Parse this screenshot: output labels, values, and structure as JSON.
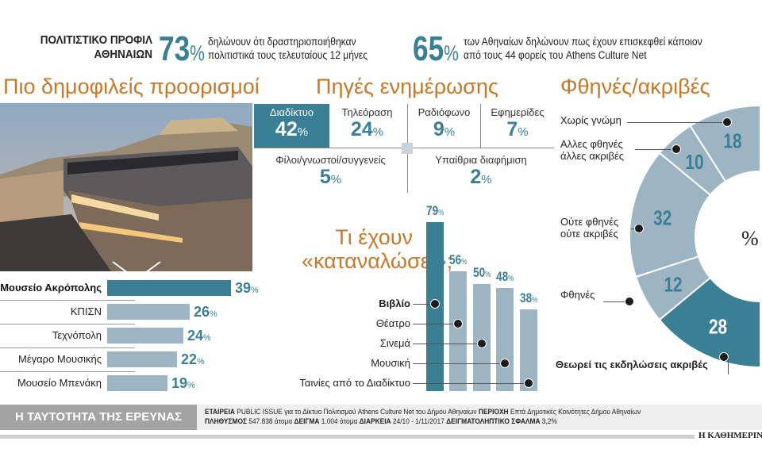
{
  "header": {
    "title_line1": "ΠΟΛΙΤΙΣΤΙΚΟ ΠΡΟΦΙΛ",
    "title_line2": "ΑΘΗΝΑΙΩΝ",
    "stat1": {
      "value": "73",
      "unit": "%",
      "text_line1": "δηλώνουν ότι δραστηριοποιήθηκαν",
      "text_line2": "πολιτιστικά τους τελευταίους 12 μήνες"
    },
    "stat2": {
      "value": "65",
      "unit": "%",
      "text_line1": "των Αθηναίων δηλώνουν πως έχουν επισκεφθεί κάποιον",
      "text_line2": "από τους 44 φορείς του Athens Culture Net"
    }
  },
  "colors": {
    "accent": "#3a7f94",
    "bar": "#9db5c3",
    "title": "#c8782a"
  },
  "chart_data": [
    {
      "type": "bar",
      "orientation": "horizontal",
      "title": "Πιο δημοφιλείς προορισμοί",
      "categories": [
        "Μουσείο Ακρόπολης",
        "ΚΠΙΣΝ",
        "Τεχνόπολη",
        "Μέγαρο Μουσικής",
        "Μουσείο Μπενάκη"
      ],
      "values": [
        39,
        26,
        24,
        22,
        19
      ],
      "unit": "%",
      "highlight": 0,
      "image": "Acropolis Museum photo"
    },
    {
      "type": "table",
      "title": "Πηγές ενημέρωσης",
      "categories": [
        "Διαδίκτυο",
        "Τηλεόραση",
        "Ραδιόφωνο",
        "Εφημερίδες",
        "Φίλοι/γνωστοί/συγγενείς",
        "Υπαίθρια διαφήμιση"
      ],
      "values": [
        42,
        24,
        9,
        7,
        5,
        2
      ],
      "unit": "%",
      "highlight": 0
    },
    {
      "type": "bar",
      "title_line1": "Τι έχουν",
      "title_line2": "«καταναλώσει»;",
      "categories": [
        "Βιβλίο",
        "Θέατρο",
        "Σινεμά",
        "Μουσική",
        "Ταινίες από το Διαδίκτυο"
      ],
      "values": [
        79,
        56,
        50,
        48,
        38
      ],
      "unit": "%",
      "highlight": 0
    },
    {
      "type": "pie",
      "style": "half-donut",
      "title": "Φθηνές/ακριβές",
      "center_label": "%",
      "categories": [
        "Χωρίς γνώμη",
        "Αλλες φθηνές άλλες ακριβές",
        "Ούτε φθηνές ούτε ακριβές",
        "Φθηνές",
        "Θεωρεί τις εκδηλώσεις ακριβές"
      ],
      "label_lines": [
        [
          "Χωρίς γνώμη"
        ],
        [
          "Αλλες φθηνές",
          "άλλες ακριβές"
        ],
        [
          "Ούτε φθηνές",
          "ούτε ακριβές"
        ],
        [
          "Φθηνές"
        ],
        [
          "Θεωρεί τις εκδηλώσεις ακριβές"
        ]
      ],
      "values": [
        18,
        10,
        32,
        12,
        28
      ],
      "highlight": 4
    }
  ],
  "footer": {
    "survey_title": "Η ΤΑΥΤΟΤΗΤΑ ΤΗΣ ΕΡΕΥΝΑΣ",
    "k1": "ΕΤΑΙΡΕΙΑ",
    "v1": "PUBLIC ISSUE για το Δίκτυο Πολιτισμού Athens Culture Net του Δήμου Αθηναίων",
    "k2": "ΠΕΡΙΟΧΗ",
    "v2": "Επτά Δημοτικές Κοινότητες Δήμου Αθηναίων",
    "k3": "ΠΛΗΘΥΣΜΟΣ",
    "v3": "547.838 άτομα",
    "k4": "ΔΕΙΓΜΑ",
    "v4": "1.004 άτομα",
    "k5": "ΔΙΑΡΚΕΙΑ",
    "v5": "24/10 - 1/11/2017",
    "k6": "ΔΕΙΓΜΑΤΟΛΗΠΤΙΚΟ ΣΦΑΛΜΑ",
    "v6": "3,2%",
    "brand": "Η ΚΑΘΗΜΕΡΙΝΗ"
  }
}
